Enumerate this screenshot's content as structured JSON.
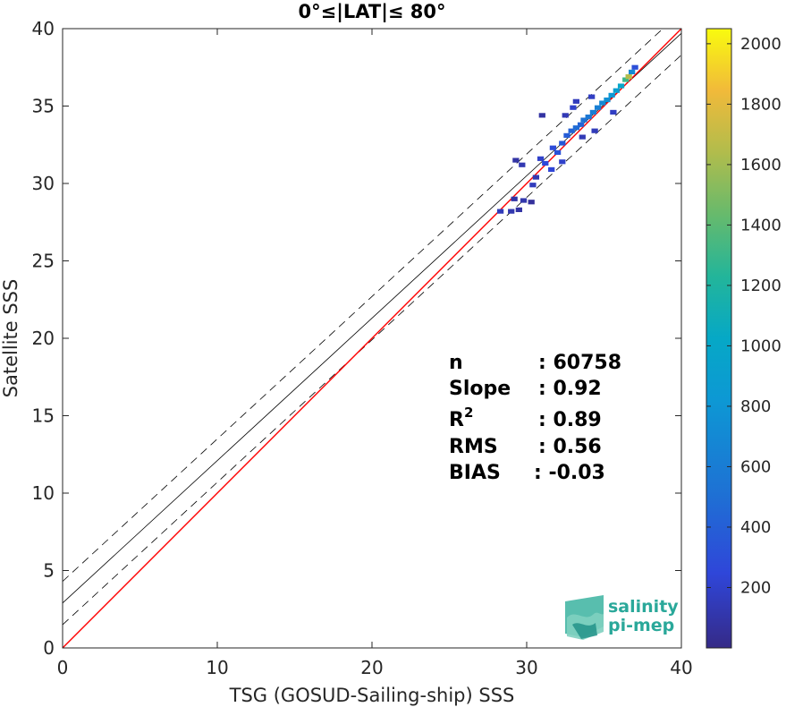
{
  "chart_data": {
    "type": "heatmap",
    "title": "0°≤|LAT|≤ 80°",
    "xlabel": "TSG (GOSUD-Sailing-ship) SSS",
    "ylabel": "Satellite SSS",
    "xlim": [
      0,
      40
    ],
    "ylim": [
      0,
      40
    ],
    "xticks": [
      "0",
      "10",
      "20",
      "30",
      "40"
    ],
    "yticks": [
      "0",
      "5",
      "10",
      "15",
      "20",
      "25",
      "30",
      "35",
      "40"
    ],
    "colorbar": {
      "range": [
        0,
        2050
      ],
      "ticks": [
        "200",
        "400",
        "600",
        "800",
        "1000",
        "1200",
        "1400",
        "1600",
        "1800",
        "2000"
      ]
    },
    "lines": {
      "identity": {
        "color": "#ff0000",
        "intercept": 0,
        "slope": 1
      },
      "fit": {
        "color": "#000000",
        "intercept": 2.9,
        "slope": 0.92
      },
      "fit_upper": {
        "color": "#000000",
        "style": "dashed",
        "intercept": 4.3,
        "slope": 0.92
      },
      "fit_lower": {
        "color": "#000000",
        "style": "dashed",
        "intercept": 1.5,
        "slope": 0.92
      }
    },
    "density_bins": [
      {
        "x": 28.3,
        "y": 28.2,
        "count": 150
      },
      {
        "x": 29.0,
        "y": 28.2,
        "count": 120
      },
      {
        "x": 29.5,
        "y": 28.3,
        "count": 90
      },
      {
        "x": 29.8,
        "y": 28.9,
        "count": 110
      },
      {
        "x": 30.3,
        "y": 28.8,
        "count": 60
      },
      {
        "x": 29.3,
        "y": 31.5,
        "count": 90
      },
      {
        "x": 29.7,
        "y": 31.2,
        "count": 130
      },
      {
        "x": 30.6,
        "y": 30.4,
        "count": 120
      },
      {
        "x": 30.9,
        "y": 31.6,
        "count": 200
      },
      {
        "x": 31.2,
        "y": 31.3,
        "count": 260
      },
      {
        "x": 31.7,
        "y": 32.3,
        "count": 280
      },
      {
        "x": 32.0,
        "y": 32.0,
        "count": 320
      },
      {
        "x": 32.3,
        "y": 32.6,
        "count": 360
      },
      {
        "x": 32.6,
        "y": 33.1,
        "count": 380
      },
      {
        "x": 32.9,
        "y": 33.4,
        "count": 420
      },
      {
        "x": 33.2,
        "y": 33.6,
        "count": 480
      },
      {
        "x": 33.5,
        "y": 33.8,
        "count": 430
      },
      {
        "x": 33.7,
        "y": 34.1,
        "count": 520
      },
      {
        "x": 34.0,
        "y": 34.3,
        "count": 560
      },
      {
        "x": 34.3,
        "y": 34.6,
        "count": 600
      },
      {
        "x": 34.6,
        "y": 34.9,
        "count": 620
      },
      {
        "x": 34.9,
        "y": 35.2,
        "count": 700
      },
      {
        "x": 35.2,
        "y": 35.4,
        "count": 760
      },
      {
        "x": 35.5,
        "y": 35.7,
        "count": 820
      },
      {
        "x": 35.8,
        "y": 36.0,
        "count": 900
      },
      {
        "x": 36.1,
        "y": 36.3,
        "count": 1000
      },
      {
        "x": 36.4,
        "y": 36.7,
        "count": 1300
      },
      {
        "x": 36.6,
        "y": 36.9,
        "count": 1650
      },
      {
        "x": 36.8,
        "y": 37.2,
        "count": 700
      },
      {
        "x": 37.0,
        "y": 37.5,
        "count": 300
      },
      {
        "x": 31.0,
        "y": 34.4,
        "count": 80
      },
      {
        "x": 32.5,
        "y": 34.4,
        "count": 140
      },
      {
        "x": 33.2,
        "y": 35.3,
        "count": 160
      },
      {
        "x": 34.2,
        "y": 35.6,
        "count": 180
      },
      {
        "x": 33.0,
        "y": 34.9,
        "count": 200
      },
      {
        "x": 33.6,
        "y": 33.0,
        "count": 140
      },
      {
        "x": 34.4,
        "y": 33.4,
        "count": 150
      },
      {
        "x": 35.6,
        "y": 34.6,
        "count": 180
      },
      {
        "x": 32.3,
        "y": 31.4,
        "count": 200
      },
      {
        "x": 31.6,
        "y": 30.9,
        "count": 240
      },
      {
        "x": 30.4,
        "y": 29.9,
        "count": 160
      },
      {
        "x": 29.2,
        "y": 29.0,
        "count": 90
      }
    ]
  },
  "stats": {
    "rows": [
      {
        "label": "n",
        "value": ": 60758"
      },
      {
        "label": "Slope",
        "value": ": 0.92"
      },
      {
        "label": "R",
        "sup": "2",
        "value": ": 0.89"
      },
      {
        "label": "RMS",
        "value": ": 0.56"
      },
      {
        "label": "BIAS",
        "value": ": -0.03"
      }
    ]
  },
  "logo": {
    "line1": "salinity",
    "line2": "pi-mep"
  }
}
